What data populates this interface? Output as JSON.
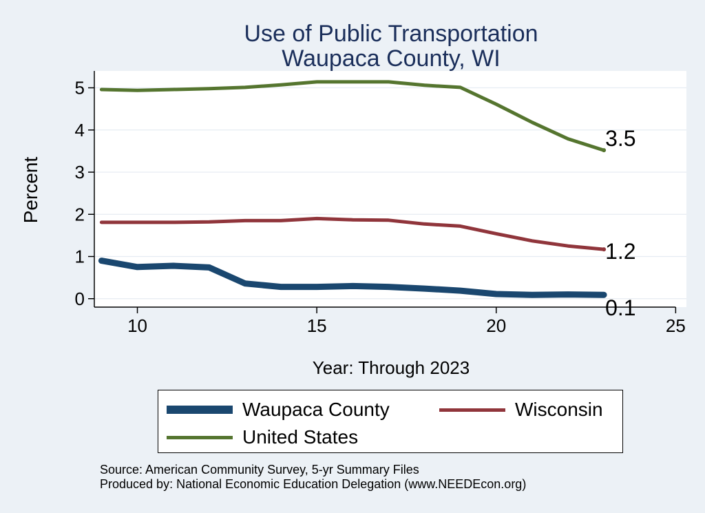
{
  "chart_data": {
    "type": "line",
    "title": "Use of Public Transportation",
    "subtitle": "Waupaca County, WI",
    "xlabel": "Year: Through 2023",
    "ylabel": "Percent",
    "xlim": [
      8.8,
      25.3
    ],
    "ylim": [
      -0.2,
      5.4
    ],
    "xticks": [
      10,
      15,
      20,
      25
    ],
    "yticks": [
      0,
      1,
      2,
      3,
      4,
      5
    ],
    "grid": true,
    "legend_position": "bottom",
    "series": [
      {
        "name": "Waupaca County",
        "color": "#1a476f",
        "x": [
          9,
          10,
          11,
          12,
          13,
          14,
          15,
          16,
          17,
          18,
          19,
          20,
          21,
          22,
          23
        ],
        "values": [
          0.9,
          0.75,
          0.78,
          0.74,
          0.36,
          0.28,
          0.28,
          0.3,
          0.28,
          0.24,
          0.19,
          0.11,
          0.09,
          0.1,
          0.09
        ],
        "end_label": "0.1"
      },
      {
        "name": "Wisconsin",
        "color": "#90353b",
        "x": [
          9,
          10,
          11,
          12,
          13,
          14,
          15,
          16,
          17,
          18,
          19,
          20,
          21,
          22,
          23
        ],
        "values": [
          1.81,
          1.81,
          1.81,
          1.82,
          1.85,
          1.85,
          1.9,
          1.87,
          1.86,
          1.77,
          1.72,
          1.54,
          1.37,
          1.25,
          1.17
        ],
        "end_label": "1.2"
      },
      {
        "name": "United States",
        "color": "#55752f",
        "x": [
          9,
          10,
          11,
          12,
          13,
          14,
          15,
          16,
          17,
          18,
          19,
          20,
          21,
          22,
          23
        ],
        "values": [
          4.96,
          4.94,
          4.96,
          4.98,
          5.01,
          5.07,
          5.14,
          5.14,
          5.14,
          5.06,
          5.01,
          4.61,
          4.18,
          3.79,
          3.52
        ],
        "end_label": "3.5"
      }
    ],
    "source_lines": [
      "Source: American Community Survey, 5-yr Summary Files",
      "Produced by: National Economic Education Delegation (www.NEEDEcon.org)"
    ]
  }
}
